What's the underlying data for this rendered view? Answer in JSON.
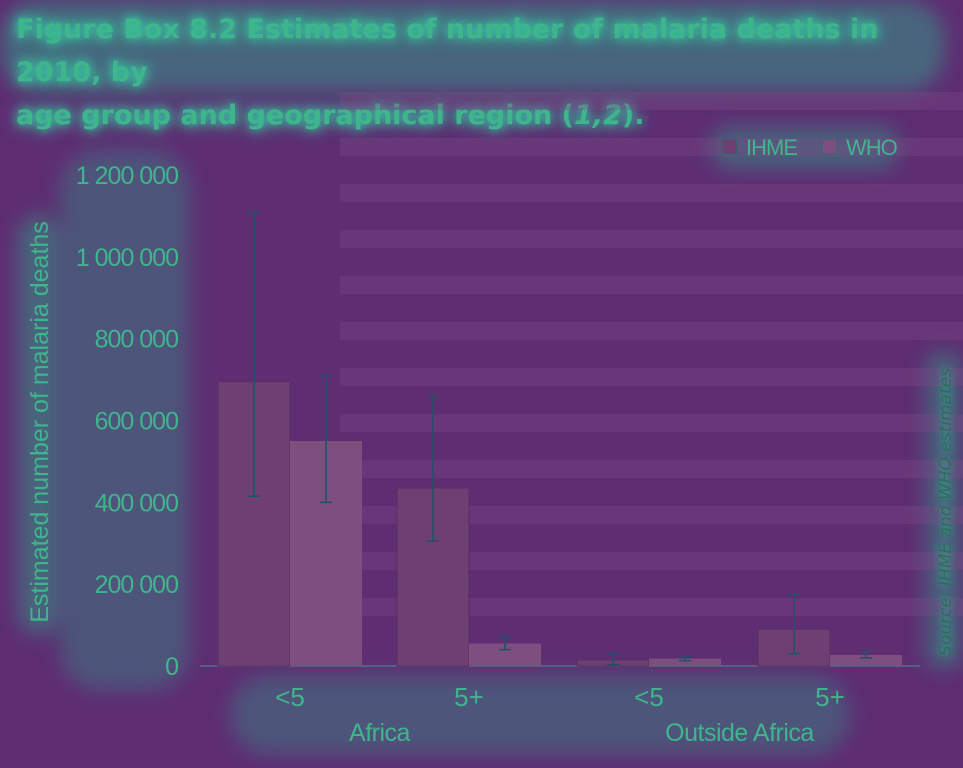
{
  "title": {
    "label": "Figure Box 8.2",
    "text": "Estimates of number of malaria deaths in 2010, by",
    "line2": "age group and geographical region (",
    "refs": "1,2",
    "close": ")."
  },
  "source": {
    "label": "Source:",
    "text": "IHME and WHO estimates"
  },
  "colors": {
    "ihme": "#6e3f72",
    "who": "#7c4f7e",
    "text": "#3fb58c",
    "errorbar": "#244f68"
  },
  "chart_data": {
    "type": "bar",
    "ylabel": "Estimated number of malaria deaths",
    "xlabel": "",
    "ylim": [
      0,
      1200000
    ],
    "yticks": [
      0,
      200000,
      400000,
      600000,
      800000,
      1000000,
      1200000
    ],
    "ytick_labels": [
      "0",
      "200 000",
      "400 000",
      "600 000",
      "800 000",
      "1 000 000",
      "1 200 000"
    ],
    "categories": [
      "<5",
      "5+",
      "<5",
      "5+"
    ],
    "groups": [
      {
        "label": "Africa",
        "categories": [
          "<5",
          "5+"
        ]
      },
      {
        "label": "Outside Africa",
        "categories": [
          "<5",
          "5+"
        ]
      }
    ],
    "legend": {
      "position": "top-right"
    },
    "series": [
      {
        "name": "IHME",
        "values": [
          695000,
          435000,
          15000,
          90000
        ],
        "error_low": [
          415000,
          305000,
          3000,
          30000
        ],
        "error_high": [
          1110000,
          660000,
          30000,
          175000
        ]
      },
      {
        "name": "WHO",
        "values": [
          550000,
          55000,
          18000,
          27000
        ],
        "error_low": [
          400000,
          40000,
          13000,
          20000
        ],
        "error_high": [
          710000,
          70000,
          22000,
          35000
        ]
      }
    ]
  }
}
